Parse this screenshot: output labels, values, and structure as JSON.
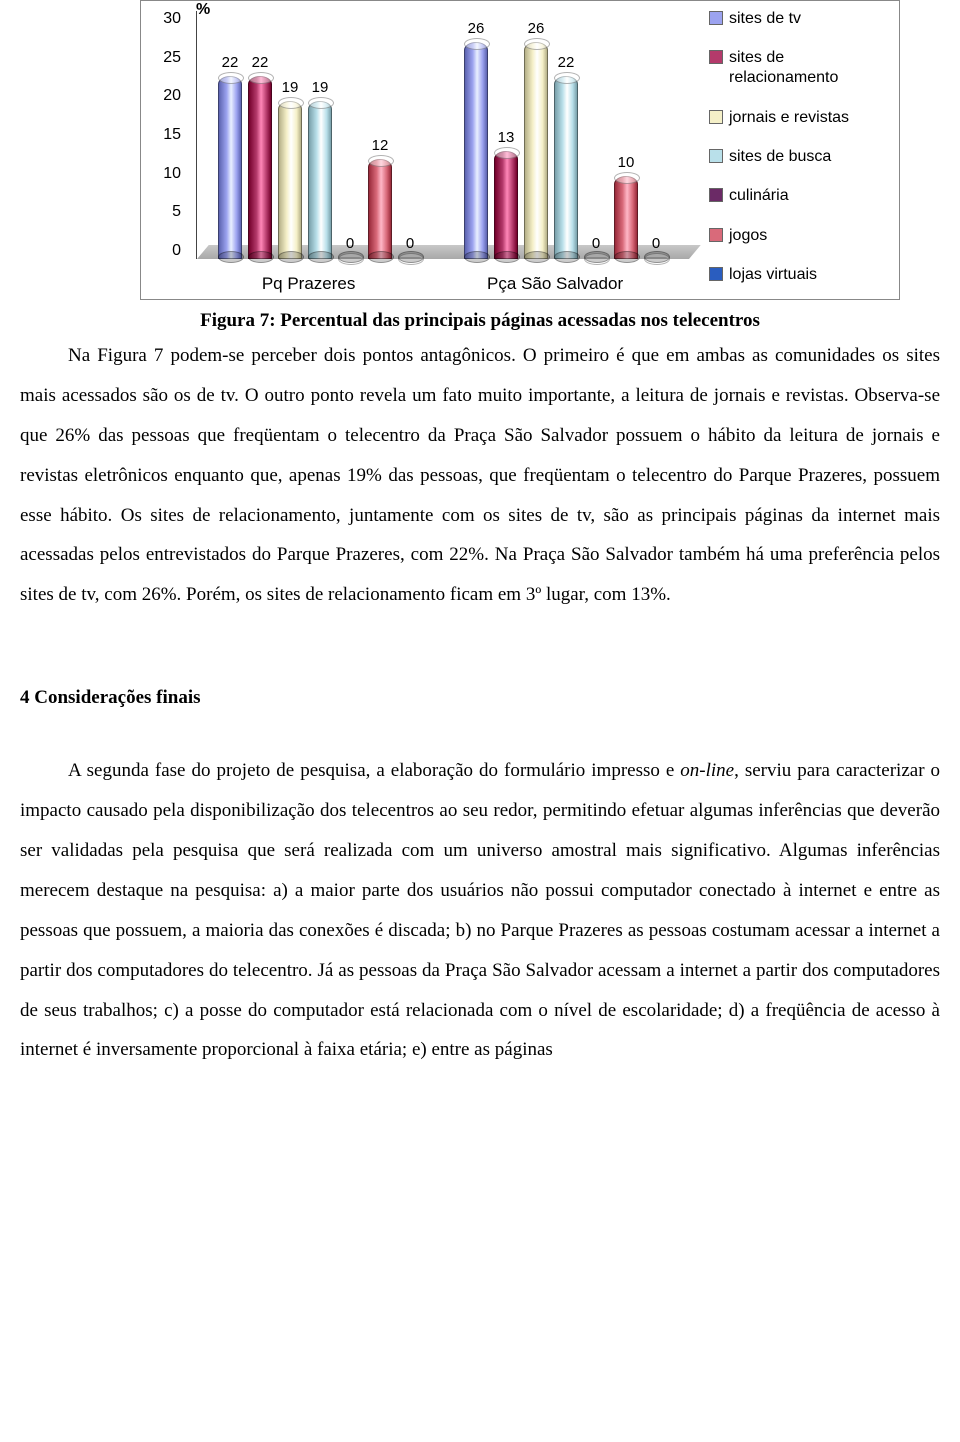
{
  "chart": {
    "type": "bar-3d-cylinder",
    "unit_symbol": "%",
    "y_axis": {
      "min": 0,
      "max": 30,
      "step": 5,
      "labels": [
        "0",
        "5",
        "10",
        "15",
        "20",
        "25",
        "30"
      ]
    },
    "categories": [
      "Pq Prazeres",
      "Pça São Salvador"
    ],
    "series": [
      {
        "name": "sites de tv",
        "color": "#9ca3f0",
        "values": [
          22,
          26
        ]
      },
      {
        "name": "sites de relacionamento",
        "color": "#b43a6b",
        "values": [
          22,
          13
        ]
      },
      {
        "name": "jornais e revistas",
        "color": "#f5f0c8",
        "values": [
          19,
          26
        ]
      },
      {
        "name": "sites de busca",
        "color": "#b9e0ea",
        "values": [
          19,
          22
        ]
      },
      {
        "name": "culinária",
        "color": "#6b2a66",
        "values": [
          0,
          0
        ]
      },
      {
        "name": "jogos",
        "color": "#d96a7a",
        "values": [
          12,
          10
        ]
      },
      {
        "name": "lojas virtuais",
        "color": "#2a5dbf",
        "values": [
          0,
          0
        ]
      }
    ],
    "floor_color": "#c0c0c0",
    "legend_fontsize": 16,
    "label_fontsize": 15,
    "axis_fontsize": 16
  },
  "caption": "Figura 7: Percentual das principais páginas acessadas nos telecentros",
  "paragraph1_lead": "Na Figura 7 podem-se perceber dois pontos antagônicos. O primeiro é que em ambas as comunidades os sites mais acessados são os de tv. O outro ponto revela um fato muito importante, a leitura de jornais e revistas. Observa-se que 26% das pessoas que freqüentam o telecentro da Praça São Salvador possuem o hábito da leitura de jornais e revistas eletrônicos enquanto que, apenas 19% das pessoas, que freqüentam o telecentro do Parque Prazeres, possuem esse hábito. Os sites de relacionamento, juntamente com os sites de tv, são as principais páginas da internet mais acessadas pelos entrevistados do Parque Prazeres, com 22%. Na Praça São Salvador também há uma preferência pelos sites de tv, com 26%. Porém, os sites de relacionamento ficam em 3º lugar, com 13%.",
  "section_heading": "4 Considerações finais",
  "paragraph2": "A segunda fase do projeto de pesquisa, a elaboração do formulário impresso e ",
  "paragraph2_ital": "on-line",
  "paragraph2_cont": ", serviu para caracterizar o impacto causado pela disponibilização dos telecentros ao seu redor, permitindo efetuar algumas inferências que deverão ser validadas pela pesquisa que será realizada com um universo amostral mais significativo. Algumas inferências merecem destaque na pesquisa: a) a maior parte dos usuários não possui computador conectado à internet e entre as pessoas que possuem, a maioria das conexões é discada; b) no Parque Prazeres as pessoas costumam acessar a internet a partir dos computadores do telecentro. Já as pessoas da Praça São Salvador acessam a internet a partir dos computadores de seus trabalhos; c) a posse do computador está relacionada com o nível de escolaridade; d) a freqüência de acesso à internet é inversamente proporcional à faixa etária; e) entre as páginas"
}
